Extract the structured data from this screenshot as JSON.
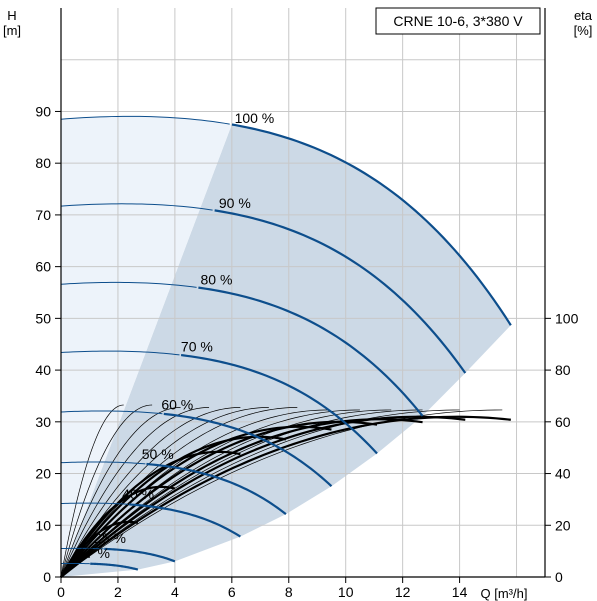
{
  "chart_data": {
    "type": "line",
    "title": "CRNE 10-6, 3*380 V",
    "y_left_label": [
      "H",
      "[m]"
    ],
    "y_right_label": [
      "eta",
      "[%]"
    ],
    "x_label": "Q [m³/h]",
    "x_ticks": [
      "0",
      "2",
      "4",
      "6",
      "8",
      "10",
      "12",
      "14"
    ],
    "y_left_ticks": [
      "0",
      "10",
      "20",
      "30",
      "40",
      "50",
      "60",
      "70",
      "80",
      "90"
    ],
    "y_right_ticks": [
      "0",
      "20",
      "40",
      "60",
      "80",
      "100"
    ],
    "xlim": [
      0,
      17
    ],
    "ylim": [
      0,
      110
    ],
    "y_right_range": [
      0,
      220
    ],
    "grid": true,
    "colors": {
      "pump_curve": "#0d4e8c",
      "operating_area": "#ccd9e6",
      "low_flow_area": "#edf3fa",
      "efficiency": "#000000"
    },
    "speed_curves": [
      {
        "speed": "100 %",
        "h0": 88.5,
        "qmax": 15.8
      },
      {
        "speed": "90 %",
        "h0": 71.7,
        "qmax": 14.2
      },
      {
        "speed": "80 %",
        "h0": 56.6,
        "qmax": 12.7
      },
      {
        "speed": "70 %",
        "h0": 43.4,
        "qmax": 11.1
      },
      {
        "speed": "60 %",
        "h0": 31.9,
        "qmax": 9.5
      },
      {
        "speed": "50 %",
        "h0": 22.1,
        "qmax": 7.9
      },
      {
        "speed": "40 %",
        "h0": 14.2,
        "qmax": 6.3
      },
      {
        "speed": "25 %",
        "h0": 5.5,
        "qmax": 4.0
      },
      {
        "speed": "17 %",
        "h0": 2.6,
        "qmax": 2.7
      }
    ],
    "efficiency_curves": [
      {
        "q_max": 2.7,
        "eta_peak": 22
      },
      {
        "q_max": 4.0,
        "eta_peak": 36
      },
      {
        "q_max": 6.3,
        "eta_peak": 50
      },
      {
        "q_max": 7.9,
        "eta_peak": 56
      },
      {
        "q_max": 9.5,
        "eta_peak": 60
      },
      {
        "q_max": 11.1,
        "eta_peak": 62
      },
      {
        "q_max": 12.7,
        "eta_peak": 63
      },
      {
        "q_max": 14.2,
        "eta_peak": 64
      },
      {
        "q_max": 15.8,
        "eta_peak": 64
      }
    ],
    "thin_efficiency_curves": [
      {
        "q_max": 2.2,
        "eta_peak": 70
      },
      {
        "q_max": 3.2,
        "eta_peak": 70
      },
      {
        "q_max": 4.2,
        "eta_peak": 69
      },
      {
        "q_max": 5.2,
        "eta_peak": 69
      },
      {
        "q_max": 6.3,
        "eta_peak": 69
      },
      {
        "q_max": 7.3,
        "eta_peak": 69
      },
      {
        "q_max": 8.3,
        "eta_peak": 69
      },
      {
        "q_max": 9.4,
        "eta_peak": 68
      },
      {
        "q_max": 10.5,
        "eta_peak": 68
      },
      {
        "q_max": 11.6,
        "eta_peak": 68
      },
      {
        "q_max": 12.7,
        "eta_peak": 68
      },
      {
        "q_max": 14.0,
        "eta_peak": 68
      },
      {
        "q_max": 15.5,
        "eta_peak": 68
      }
    ]
  }
}
